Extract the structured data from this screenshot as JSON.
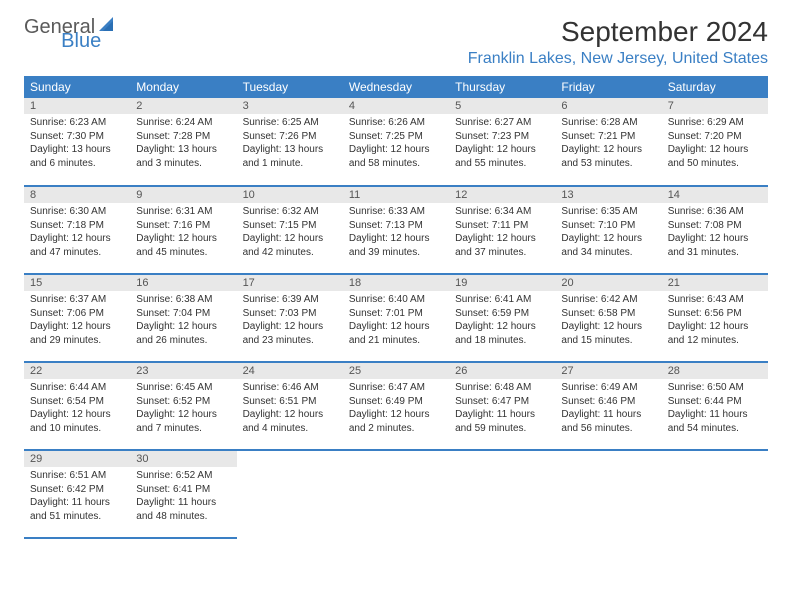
{
  "logo": {
    "text_general": "General",
    "text_blue": "Blue"
  },
  "title": "September 2024",
  "location": "Franklin Lakes, New Jersey, United States",
  "colors": {
    "header_bg": "#3a7fc4",
    "header_text": "#ffffff",
    "day_number_bg": "#e8e8e8",
    "border": "#3a7fc4",
    "logo_gray": "#5a5a5a",
    "logo_blue": "#3a7fc4"
  },
  "weekdays": [
    "Sunday",
    "Monday",
    "Tuesday",
    "Wednesday",
    "Thursday",
    "Friday",
    "Saturday"
  ],
  "weeks": [
    [
      {
        "day": "1",
        "sunrise": "Sunrise: 6:23 AM",
        "sunset": "Sunset: 7:30 PM",
        "daylight": "Daylight: 13 hours and 6 minutes."
      },
      {
        "day": "2",
        "sunrise": "Sunrise: 6:24 AM",
        "sunset": "Sunset: 7:28 PM",
        "daylight": "Daylight: 13 hours and 3 minutes."
      },
      {
        "day": "3",
        "sunrise": "Sunrise: 6:25 AM",
        "sunset": "Sunset: 7:26 PM",
        "daylight": "Daylight: 13 hours and 1 minute."
      },
      {
        "day": "4",
        "sunrise": "Sunrise: 6:26 AM",
        "sunset": "Sunset: 7:25 PM",
        "daylight": "Daylight: 12 hours and 58 minutes."
      },
      {
        "day": "5",
        "sunrise": "Sunrise: 6:27 AM",
        "sunset": "Sunset: 7:23 PM",
        "daylight": "Daylight: 12 hours and 55 minutes."
      },
      {
        "day": "6",
        "sunrise": "Sunrise: 6:28 AM",
        "sunset": "Sunset: 7:21 PM",
        "daylight": "Daylight: 12 hours and 53 minutes."
      },
      {
        "day": "7",
        "sunrise": "Sunrise: 6:29 AM",
        "sunset": "Sunset: 7:20 PM",
        "daylight": "Daylight: 12 hours and 50 minutes."
      }
    ],
    [
      {
        "day": "8",
        "sunrise": "Sunrise: 6:30 AM",
        "sunset": "Sunset: 7:18 PM",
        "daylight": "Daylight: 12 hours and 47 minutes."
      },
      {
        "day": "9",
        "sunrise": "Sunrise: 6:31 AM",
        "sunset": "Sunset: 7:16 PM",
        "daylight": "Daylight: 12 hours and 45 minutes."
      },
      {
        "day": "10",
        "sunrise": "Sunrise: 6:32 AM",
        "sunset": "Sunset: 7:15 PM",
        "daylight": "Daylight: 12 hours and 42 minutes."
      },
      {
        "day": "11",
        "sunrise": "Sunrise: 6:33 AM",
        "sunset": "Sunset: 7:13 PM",
        "daylight": "Daylight: 12 hours and 39 minutes."
      },
      {
        "day": "12",
        "sunrise": "Sunrise: 6:34 AM",
        "sunset": "Sunset: 7:11 PM",
        "daylight": "Daylight: 12 hours and 37 minutes."
      },
      {
        "day": "13",
        "sunrise": "Sunrise: 6:35 AM",
        "sunset": "Sunset: 7:10 PM",
        "daylight": "Daylight: 12 hours and 34 minutes."
      },
      {
        "day": "14",
        "sunrise": "Sunrise: 6:36 AM",
        "sunset": "Sunset: 7:08 PM",
        "daylight": "Daylight: 12 hours and 31 minutes."
      }
    ],
    [
      {
        "day": "15",
        "sunrise": "Sunrise: 6:37 AM",
        "sunset": "Sunset: 7:06 PM",
        "daylight": "Daylight: 12 hours and 29 minutes."
      },
      {
        "day": "16",
        "sunrise": "Sunrise: 6:38 AM",
        "sunset": "Sunset: 7:04 PM",
        "daylight": "Daylight: 12 hours and 26 minutes."
      },
      {
        "day": "17",
        "sunrise": "Sunrise: 6:39 AM",
        "sunset": "Sunset: 7:03 PM",
        "daylight": "Daylight: 12 hours and 23 minutes."
      },
      {
        "day": "18",
        "sunrise": "Sunrise: 6:40 AM",
        "sunset": "Sunset: 7:01 PM",
        "daylight": "Daylight: 12 hours and 21 minutes."
      },
      {
        "day": "19",
        "sunrise": "Sunrise: 6:41 AM",
        "sunset": "Sunset: 6:59 PM",
        "daylight": "Daylight: 12 hours and 18 minutes."
      },
      {
        "day": "20",
        "sunrise": "Sunrise: 6:42 AM",
        "sunset": "Sunset: 6:58 PM",
        "daylight": "Daylight: 12 hours and 15 minutes."
      },
      {
        "day": "21",
        "sunrise": "Sunrise: 6:43 AM",
        "sunset": "Sunset: 6:56 PM",
        "daylight": "Daylight: 12 hours and 12 minutes."
      }
    ],
    [
      {
        "day": "22",
        "sunrise": "Sunrise: 6:44 AM",
        "sunset": "Sunset: 6:54 PM",
        "daylight": "Daylight: 12 hours and 10 minutes."
      },
      {
        "day": "23",
        "sunrise": "Sunrise: 6:45 AM",
        "sunset": "Sunset: 6:52 PM",
        "daylight": "Daylight: 12 hours and 7 minutes."
      },
      {
        "day": "24",
        "sunrise": "Sunrise: 6:46 AM",
        "sunset": "Sunset: 6:51 PM",
        "daylight": "Daylight: 12 hours and 4 minutes."
      },
      {
        "day": "25",
        "sunrise": "Sunrise: 6:47 AM",
        "sunset": "Sunset: 6:49 PM",
        "daylight": "Daylight: 12 hours and 2 minutes."
      },
      {
        "day": "26",
        "sunrise": "Sunrise: 6:48 AM",
        "sunset": "Sunset: 6:47 PM",
        "daylight": "Daylight: 11 hours and 59 minutes."
      },
      {
        "day": "27",
        "sunrise": "Sunrise: 6:49 AM",
        "sunset": "Sunset: 6:46 PM",
        "daylight": "Daylight: 11 hours and 56 minutes."
      },
      {
        "day": "28",
        "sunrise": "Sunrise: 6:50 AM",
        "sunset": "Sunset: 6:44 PM",
        "daylight": "Daylight: 11 hours and 54 minutes."
      }
    ],
    [
      {
        "day": "29",
        "sunrise": "Sunrise: 6:51 AM",
        "sunset": "Sunset: 6:42 PM",
        "daylight": "Daylight: 11 hours and 51 minutes."
      },
      {
        "day": "30",
        "sunrise": "Sunrise: 6:52 AM",
        "sunset": "Sunset: 6:41 PM",
        "daylight": "Daylight: 11 hours and 48 minutes."
      },
      null,
      null,
      null,
      null,
      null
    ]
  ]
}
